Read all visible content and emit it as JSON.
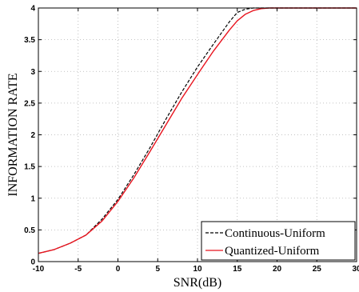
{
  "chart_data": {
    "type": "line",
    "xlabel": "SNR(dB)",
    "ylabel": "INFORMATION RATE",
    "xlim": [
      -10,
      30
    ],
    "ylim": [
      0,
      4
    ],
    "xticks": [
      -10,
      -5,
      0,
      5,
      10,
      15,
      20,
      25,
      30
    ],
    "xtick_labels": [
      "-10",
      "-5",
      "0",
      "5",
      "10",
      "15",
      "20",
      "25",
      "30"
    ],
    "yticks": [
      0,
      0.5,
      1,
      1.5,
      2,
      2.5,
      3,
      3.5,
      4
    ],
    "ytick_labels": [
      "0",
      "0.5",
      "1",
      "1.5",
      "2",
      "2.5",
      "3",
      "3.5",
      "4"
    ],
    "grid": true,
    "legend_position": "bottom-right",
    "series": [
      {
        "name": "Continuous-Uniform",
        "color": "#000000",
        "style": "dashed",
        "x": [
          -10,
          -8,
          -6,
          -4,
          -2,
          0,
          2,
          4,
          6,
          8,
          10,
          12,
          14,
          15,
          16,
          17,
          18,
          20,
          22,
          25,
          30
        ],
        "y": [
          0.13,
          0.19,
          0.29,
          0.42,
          0.67,
          0.98,
          1.37,
          1.79,
          2.24,
          2.67,
          3.07,
          3.43,
          3.78,
          3.93,
          3.98,
          4.0,
          4.0,
          4.0,
          4.0,
          4.0,
          4.0
        ]
      },
      {
        "name": "Quantized-Uniform",
        "color": "#e8141e",
        "style": "solid",
        "x": [
          -10,
          -8,
          -6,
          -4,
          -2,
          0,
          2,
          4,
          6,
          8,
          10,
          12,
          14,
          15,
          16,
          17,
          18,
          19,
          20,
          22,
          25,
          30
        ],
        "y": [
          0.13,
          0.19,
          0.29,
          0.42,
          0.64,
          0.95,
          1.32,
          1.73,
          2.15,
          2.57,
          2.95,
          3.32,
          3.65,
          3.8,
          3.9,
          3.96,
          3.99,
          4.0,
          4.0,
          4.0,
          4.0,
          4.0
        ]
      }
    ]
  }
}
